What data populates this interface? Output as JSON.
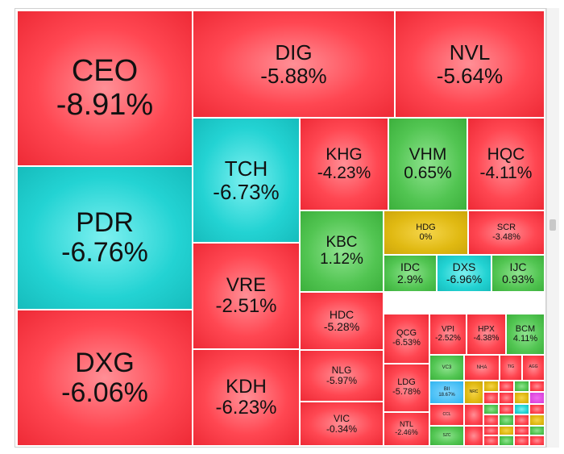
{
  "colors": {
    "down": "#ff4752",
    "up": "#52c552",
    "floor": "#23d3d3",
    "ref": "#e0b912"
  },
  "tiles": [
    {
      "ticker": "CEO",
      "change": "-8.91%",
      "color": "red"
    },
    {
      "ticker": "DIG",
      "change": "-5.88%",
      "color": "red"
    },
    {
      "ticker": "NVL",
      "change": "-5.64%",
      "color": "red"
    },
    {
      "ticker": "PDR",
      "change": "-6.76%",
      "color": "cyan"
    },
    {
      "ticker": "DXG",
      "change": "-6.06%",
      "color": "red"
    },
    {
      "ticker": "TCH",
      "change": "-6.73%",
      "color": "cyan"
    },
    {
      "ticker": "VRE",
      "change": "-2.51%",
      "color": "red"
    },
    {
      "ticker": "KDH",
      "change": "-6.23%",
      "color": "red"
    },
    {
      "ticker": "KHG",
      "change": "-4.23%",
      "color": "red"
    },
    {
      "ticker": "VHM",
      "change": "0.65%",
      "color": "green"
    },
    {
      "ticker": "HQC",
      "change": "-4.11%",
      "color": "red"
    },
    {
      "ticker": "KBC",
      "change": "1.12%",
      "color": "green"
    },
    {
      "ticker": "HDG",
      "change": "0%",
      "color": "yellow"
    },
    {
      "ticker": "SCR",
      "change": "-3.48%",
      "color": "red"
    },
    {
      "ticker": "IDC",
      "change": "2.9%",
      "color": "green"
    },
    {
      "ticker": "DXS",
      "change": "-6.96%",
      "color": "cyan"
    },
    {
      "ticker": "IJC",
      "change": "0.93%",
      "color": "green"
    },
    {
      "ticker": "HDC",
      "change": "-5.28%",
      "color": "red"
    },
    {
      "ticker": "QCG",
      "change": "-6.53%",
      "color": "red"
    },
    {
      "ticker": "VPI",
      "change": "-2.52%",
      "color": "red"
    },
    {
      "ticker": "HPX",
      "change": "-4.38%",
      "color": "red"
    },
    {
      "ticker": "BCM",
      "change": "4.11%",
      "color": "green"
    },
    {
      "ticker": "NLG",
      "change": "-5.97%",
      "color": "red"
    },
    {
      "ticker": "LDG",
      "change": "-5.78%",
      "color": "red"
    },
    {
      "ticker": "VIC",
      "change": "-0.34%",
      "color": "red"
    },
    {
      "ticker": "NTL",
      "change": "-2.46%",
      "color": "red"
    },
    {
      "ticker": "VC3",
      "change": "",
      "color": "green"
    },
    {
      "ticker": "NHA",
      "change": "",
      "color": "red"
    },
    {
      "ticker": "TIG",
      "change": "",
      "color": "red"
    },
    {
      "ticker": "AGG",
      "change": "",
      "color": "red"
    },
    {
      "ticker": "BII",
      "change": "18.67%",
      "color": "blue"
    },
    {
      "ticker": "NRC",
      "change": "",
      "color": "yellow"
    },
    {
      "ticker": "CCL",
      "change": "",
      "color": "red"
    },
    {
      "ticker": "SZC",
      "change": "",
      "color": "green"
    }
  ]
}
